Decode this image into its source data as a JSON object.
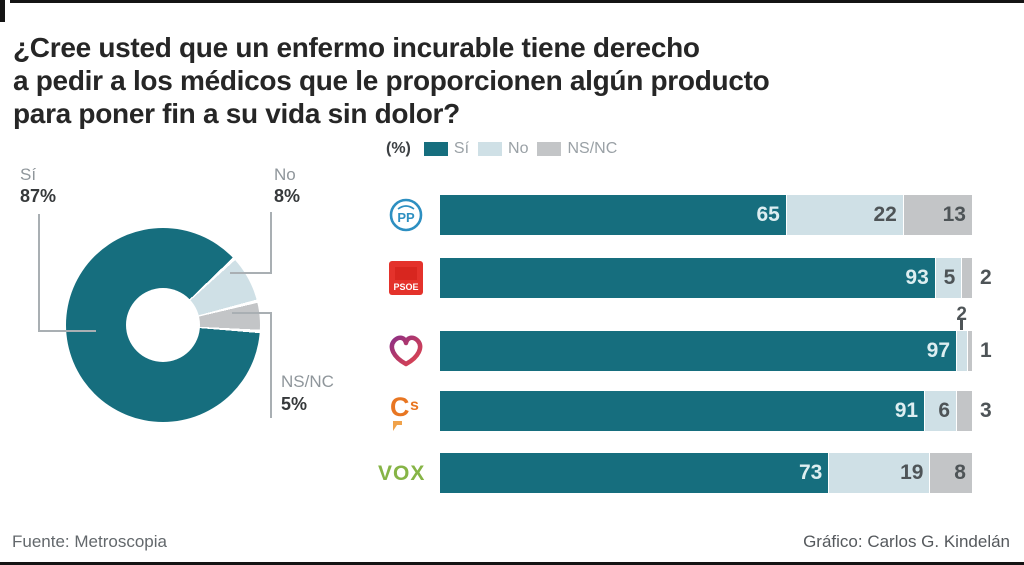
{
  "title": {
    "lines": [
      "¿Cree usted que un enfermo incurable tiene derecho",
      "a pedir a los médicos que le proporcionen algún producto",
      "para poner fin a su vida sin dolor?"
    ]
  },
  "donut_callouts": [
    {
      "label": "Sí",
      "value": "87%"
    },
    {
      "label": "No",
      "value": "8%"
    },
    {
      "label": "NS/NC",
      "value": "5%"
    }
  ],
  "chart_data": [
    {
      "type": "pie",
      "donut": true,
      "labels": [
        "Sí",
        "No",
        "NS/NC"
      ],
      "values": [
        87,
        8,
        5
      ],
      "colors": [
        "#166e7e",
        "#cfe0e6",
        "#c3c5c7"
      ],
      "start_angle_deg": 47,
      "clockwise_order": [
        "No",
        "NS/NC",
        "Sí"
      ]
    },
    {
      "type": "bar",
      "orientation": "horizontal",
      "stacked": true,
      "unit": "(%)",
      "legend_position": "top",
      "categories": [
        "PP",
        "PSOE",
        "Podemos",
        "Cs",
        "VOX"
      ],
      "series": [
        {
          "name": "Sí",
          "color": "#166e7e",
          "values": [
            65,
            93,
            97,
            91,
            73
          ]
        },
        {
          "name": "No",
          "color": "#cfe0e6",
          "values": [
            22,
            5,
            2,
            6,
            19
          ]
        },
        {
          "name": "NS/NC",
          "color": "#c3c5c7",
          "values": [
            13,
            2,
            1,
            3,
            8
          ]
        }
      ],
      "xlim": [
        0,
        100
      ],
      "value_label_positions": [
        [
          "in",
          "in",
          "in"
        ],
        [
          "in",
          "in",
          "out"
        ],
        [
          "in",
          "above",
          "out"
        ],
        [
          "in",
          "in",
          "out"
        ],
        [
          "in",
          "in",
          "in"
        ]
      ]
    }
  ],
  "footer": {
    "source": "Fuente: Metroscopia",
    "credit": "Gráfico: Carlos G. Kindelán"
  }
}
